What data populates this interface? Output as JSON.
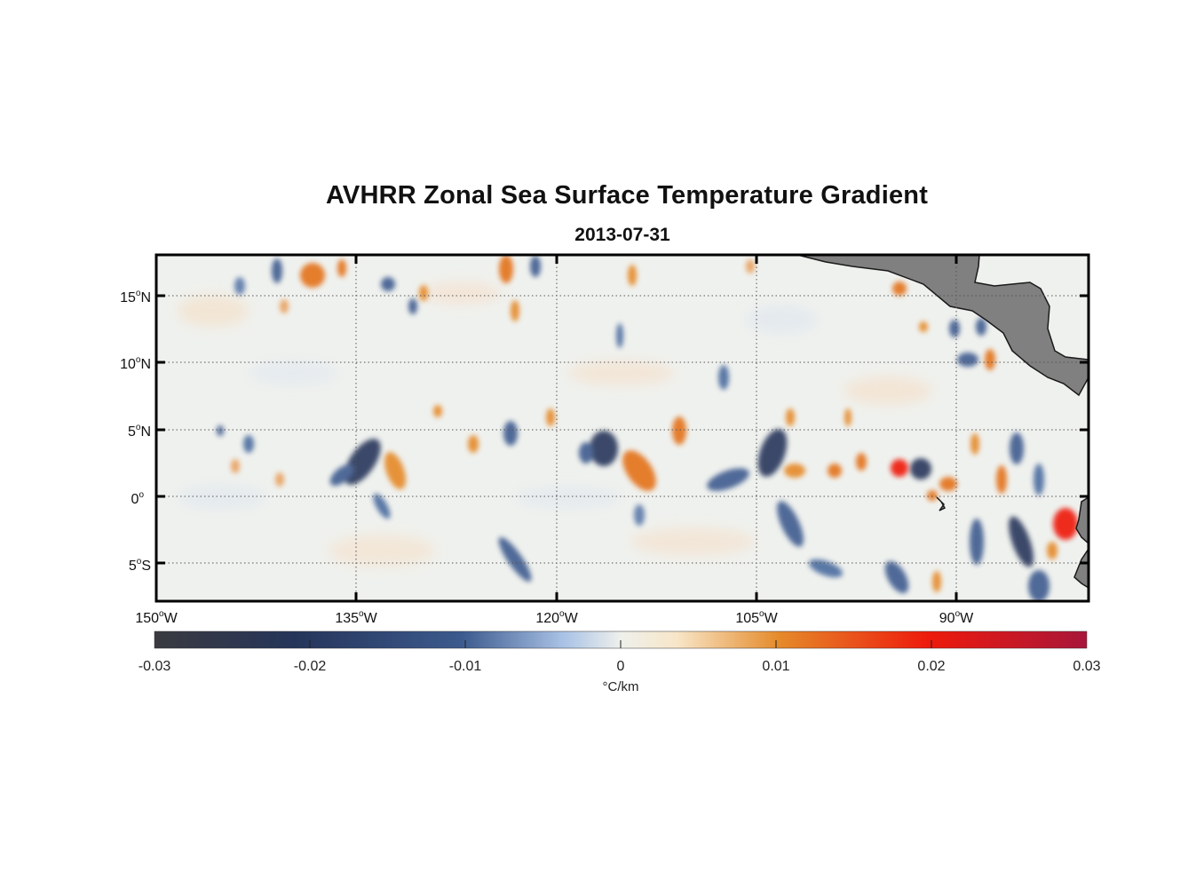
{
  "title": "AVHRR Zonal Sea Surface Temperature Gradient",
  "subtitle": "2013-07-31",
  "lat_labels": [
    {
      "deg": "15",
      "hemi": "N"
    },
    {
      "deg": "10",
      "hemi": "N"
    },
    {
      "deg": "5",
      "hemi": "N"
    },
    {
      "deg": "0",
      "hemi": ""
    },
    {
      "deg": "5",
      "hemi": "S"
    }
  ],
  "lon_labels": [
    {
      "deg": "150",
      "hemi": "W"
    },
    {
      "deg": "135",
      "hemi": "W"
    },
    {
      "deg": "120",
      "hemi": "W"
    },
    {
      "deg": "105",
      "hemi": "W"
    },
    {
      "deg": "90",
      "hemi": "W"
    }
  ],
  "map_extent": {
    "lon": [
      -150,
      -80
    ],
    "lat": [
      -8,
      18
    ]
  },
  "colorbar": {
    "ticks": [
      "-0.03",
      "-0.02",
      "-0.01",
      "0",
      "0.01",
      "0.02",
      "0.03"
    ],
    "range": [
      -0.03,
      0.03
    ],
    "units": "°C/km",
    "stops": [
      "#3a3a40",
      "#25355a",
      "#3c5a8e",
      "#aac3e6",
      "#eef0ec",
      "#f8e6c8",
      "#e58a2a",
      "#ee1a0c",
      "#a8163a"
    ]
  },
  "colors": {
    "land": "#808080",
    "land_outline": "#1a1a1a",
    "frame": "#000000",
    "grid": "#555555"
  }
}
